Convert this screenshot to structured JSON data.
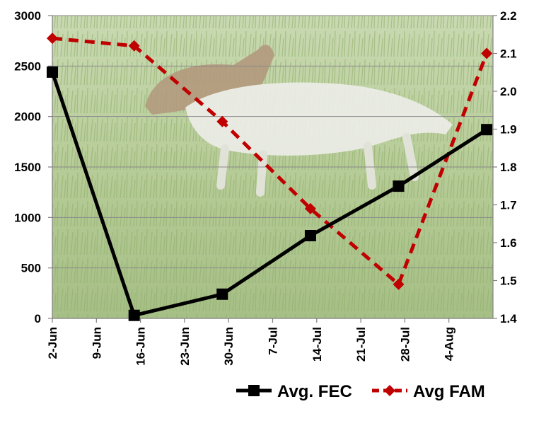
{
  "chart_data": {
    "type": "line",
    "title": "",
    "xlabel": "",
    "ylabel": "",
    "y2label": "",
    "x_ticks": [
      "2-Jun",
      "9-Jun",
      "16-Jun",
      "23-Jun",
      "30-Jun",
      "7-Jul",
      "14-Jul",
      "21-Jul",
      "28-Jul",
      "4-Aug"
    ],
    "x_range": [
      "2-Jun",
      "11-Aug"
    ],
    "ylim": [
      0,
      3000
    ],
    "y_ticks": [
      0,
      500,
      1000,
      1500,
      2000,
      2500,
      3000
    ],
    "y2lim": [
      1.4,
      2.2
    ],
    "y2_ticks": [
      1.4,
      1.5,
      1.6,
      1.7,
      1.8,
      1.9,
      2.0,
      2.1,
      2.2
    ],
    "y2_tick_labels": [
      "1.4",
      "1.5",
      "1.6",
      "1.7",
      "1.8",
      "1.9",
      "2.0",
      "2.1",
      "2.2"
    ],
    "grid": "horizontal",
    "background": "photo of goats grazing in tall green vegetation",
    "legend_position": "bottom",
    "series": [
      {
        "name": "Avg. FEC",
        "axis": "left",
        "color": "#000000",
        "line_style": "solid",
        "marker": "square",
        "x": [
          "2-Jun",
          "15-Jun",
          "29-Jun",
          "13-Jul",
          "27-Jul",
          "10-Aug"
        ],
        "y": [
          2440,
          30,
          240,
          820,
          1310,
          1870
        ]
      },
      {
        "name": "Avg FAM",
        "axis": "right",
        "color": "#c00000",
        "line_style": "dashed",
        "marker": "diamond",
        "x": [
          "2-Jun",
          "15-Jun",
          "29-Jun",
          "13-Jul",
          "27-Jul",
          "10-Aug"
        ],
        "y": [
          2.14,
          2.12,
          1.92,
          1.69,
          1.49,
          2.1
        ]
      }
    ]
  }
}
